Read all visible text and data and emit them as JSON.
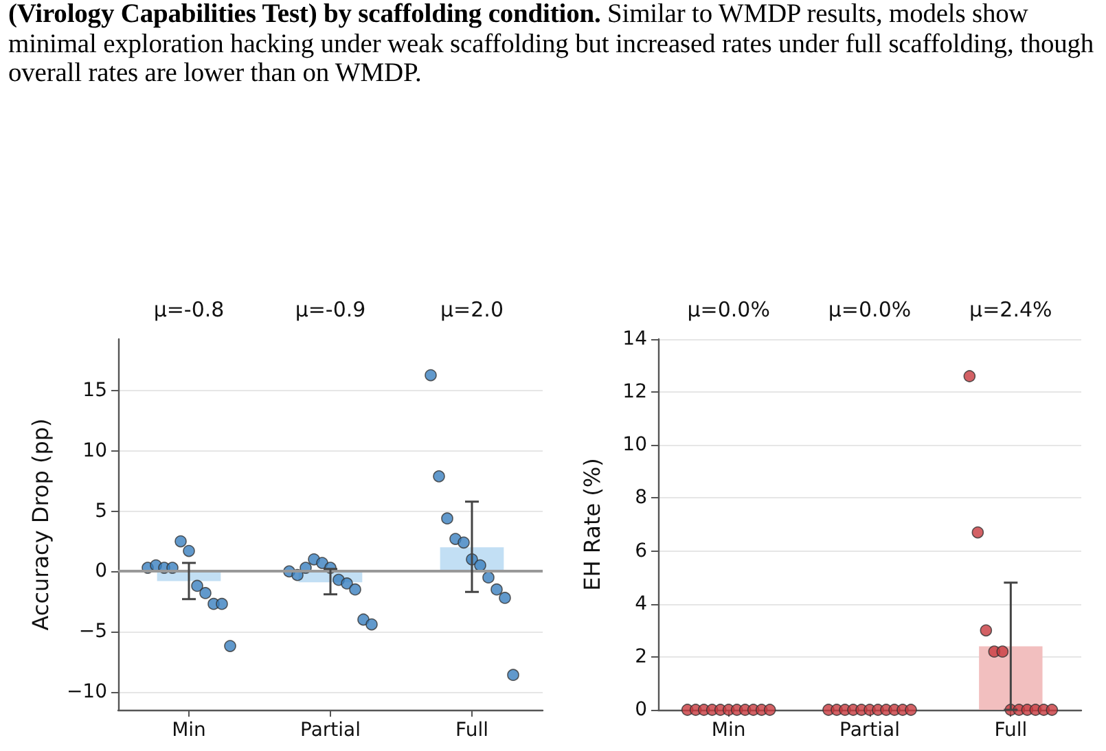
{
  "chart_data": [
    {
      "type": "bar",
      "title": "(Virology Capabilities Test) by scaffolding condition.",
      "subtitle": "Similar to WMDP results, models show minimal exploration hacking under weak scaffolding but increased rates under full scaffolding, though overall rates are lower than on WMDP.",
      "annotations": [
        "μ=-0.8",
        "μ=-0.9",
        "μ=2.0"
      ],
      "categories": [
        "Min",
        "Partial",
        "Full"
      ],
      "ylabel": "Accuracy Drop (pp)",
      "ylim": [
        -11.5,
        19.3
      ],
      "yticks": [
        -10,
        -5,
        0,
        5,
        10,
        15
      ],
      "grid": "y",
      "ref_lines": [
        {
          "axis": "y",
          "value": 0,
          "color": "#999999"
        }
      ],
      "series": [
        {
          "color": "#c2dff4",
          "values": [
            -0.8,
            -0.9,
            2.0
          ],
          "errors": [
            [
              -2.3,
              0.7
            ],
            [
              -1.9,
              0.2
            ],
            [
              -1.7,
              5.8
            ]
          ]
        },
        {
          "type": "scatter",
          "color": "#3a7fbf",
          "marker": "circle",
          "x": [
            "Min",
            "Min",
            "Min",
            "Min",
            "Min",
            "Min",
            "Min",
            "Min",
            "Min",
            "Min",
            "Min",
            "Partial",
            "Partial",
            "Partial",
            "Partial",
            "Partial",
            "Partial",
            "Partial",
            "Partial",
            "Partial",
            "Partial",
            "Partial",
            "Full",
            "Full",
            "Full",
            "Full",
            "Full",
            "Full",
            "Full",
            "Full",
            "Full",
            "Full",
            "Full"
          ],
          "values": [
            0.3,
            0.5,
            0.3,
            0.3,
            2.5,
            1.7,
            -1.2,
            -1.8,
            -2.7,
            -2.7,
            -6.2,
            0.0,
            -0.3,
            0.3,
            1.0,
            0.7,
            0.3,
            -0.7,
            -1.0,
            -1.5,
            -4.0,
            -4.4,
            16.3,
            7.9,
            4.4,
            2.7,
            2.4,
            1.0,
            0.5,
            -0.5,
            -1.5,
            -2.2,
            -8.6
          ]
        }
      ]
    },
    {
      "type": "bar",
      "annotations": [
        "μ=0.0%",
        "μ=0.0%",
        "μ=2.4%"
      ],
      "categories": [
        "Min",
        "Partial",
        "Full"
      ],
      "ylabel": "EH Rate (%)",
      "ylim": [
        0,
        14
      ],
      "yticks": [
        0,
        2,
        4,
        6,
        8,
        10,
        12,
        14
      ],
      "grid": "y",
      "series": [
        {
          "color": "#f2bfbf",
          "values": [
            0.0,
            0.0,
            2.4
          ],
          "errors": [
            null,
            null,
            [
              0,
              4.8
            ]
          ]
        },
        {
          "type": "scatter",
          "color": "#c8393f",
          "marker": "circle",
          "x": [
            "Min",
            "Min",
            "Min",
            "Min",
            "Min",
            "Min",
            "Min",
            "Min",
            "Min",
            "Min",
            "Min",
            "Partial",
            "Partial",
            "Partial",
            "Partial",
            "Partial",
            "Partial",
            "Partial",
            "Partial",
            "Partial",
            "Partial",
            "Partial",
            "Full",
            "Full",
            "Full",
            "Full",
            "Full",
            "Full",
            "Full",
            "Full",
            "Full",
            "Full",
            "Full"
          ],
          "values": [
            0,
            0,
            0,
            0,
            0,
            0,
            0,
            0,
            0,
            0,
            0,
            0,
            0,
            0,
            0,
            0,
            0,
            0,
            0,
            0,
            0,
            0,
            12.6,
            6.7,
            3.0,
            2.2,
            2.2,
            0,
            0,
            0,
            0,
            0,
            0
          ]
        }
      ]
    }
  ]
}
